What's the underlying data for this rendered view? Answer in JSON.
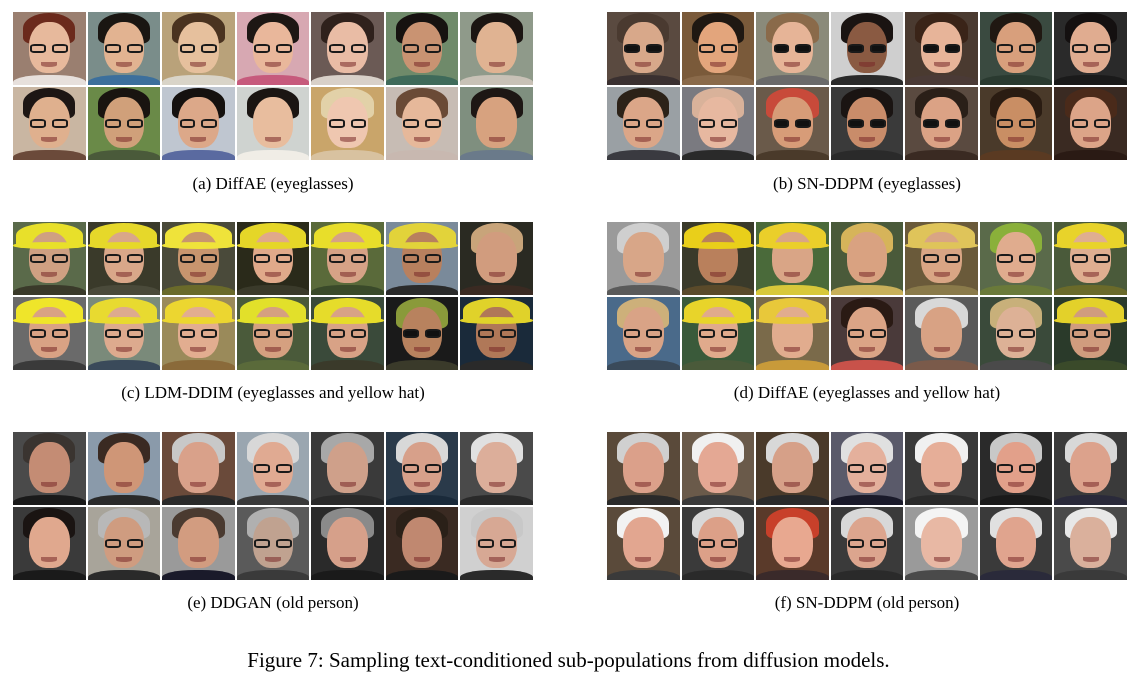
{
  "panels": [
    {
      "id": "a",
      "caption": "(a)  DiffAE (eyeglasses)",
      "faces": [
        {
          "bg": "#9a7f70",
          "skin": "#e7b99c",
          "hair": "#6b2a1c",
          "acc": "glasses",
          "shirt": "#e7e0dc"
        },
        {
          "bg": "#7a8d8a",
          "skin": "#e2b391",
          "hair": "#1a1612",
          "acc": "glasses",
          "shirt": "#3c6f9c"
        },
        {
          "bg": "#b9a27a",
          "skin": "#e6c09d",
          "hair": "#4a3320",
          "acc": "glasses",
          "shirt": "#d9d4c8"
        },
        {
          "bg": "#d7a8b2",
          "skin": "#e9b79b",
          "hair": "#1d1714",
          "acc": "glasses",
          "shirt": "#c65a7c"
        },
        {
          "bg": "#6b5a55",
          "skin": "#e9bca5",
          "hair": "#2f211c",
          "acc": "glasses",
          "shirt": "#d8d0c8"
        },
        {
          "bg": "#6f8a6a",
          "skin": "#c99372",
          "hair": "#161210",
          "acc": "glasses",
          "shirt": "#3f6a5a"
        },
        {
          "bg": "#8f9a8a",
          "skin": "#e0b392",
          "hair": "#1b1512",
          "acc": "none",
          "shirt": "#c8c1b6"
        },
        {
          "bg": "#c9b6a2",
          "skin": "#dfb08e",
          "hair": "#1d1614",
          "acc": "glasses",
          "shirt": "#6b4a3a"
        },
        {
          "bg": "#6a8a48",
          "skin": "#d0a07a",
          "hair": "#191410",
          "acc": "glasses",
          "shirt": "#4a5a3a"
        },
        {
          "bg": "#bfc6d0",
          "skin": "#dca889",
          "hair": "#15110f",
          "acc": "glasses",
          "shirt": "#5a6aa0"
        },
        {
          "bg": "#cfd3d0",
          "skin": "#e8bd9e",
          "hair": "#1a1512",
          "acc": "none",
          "shirt": "#f0ede6"
        },
        {
          "bg": "#c9a56a",
          "skin": "#efc7b0",
          "hair": "#e2d1a8",
          "acc": "glasses",
          "shirt": "#d8c2a0"
        },
        {
          "bg": "#c7bcb4",
          "skin": "#e6b89a",
          "hair": "#6a4a36",
          "acc": "glasses",
          "shirt": "#c8b8b0"
        },
        {
          "bg": "#7f8f7f",
          "skin": "#d7a27f",
          "hair": "#1d1714",
          "acc": "none",
          "shirt": "#6a7a8a"
        }
      ]
    },
    {
      "id": "b",
      "caption": "(b)  SN-DDPM (eyeglasses)",
      "faces": [
        {
          "bg": "#5a4a40",
          "skin": "#d8a88a",
          "hair": "#4a3a30",
          "acc": "sun",
          "shirt": "#3a3030"
        },
        {
          "bg": "#7a5a3a",
          "skin": "#e3a57c",
          "hair": "#1f1812",
          "acc": "glasses",
          "shirt": "#8a6a4a"
        },
        {
          "bg": "#8a8a7a",
          "skin": "#e6b497",
          "hair": "#8a6a4a",
          "acc": "sun",
          "shirt": "#6a6a6a"
        },
        {
          "bg": "#cfcfcf",
          "skin": "#8a5a42",
          "hair": "#1a1412",
          "acc": "sun",
          "shirt": "#2a2a2a"
        },
        {
          "bg": "#4a3a30",
          "skin": "#e7b499",
          "hair": "#3a2418",
          "acc": "sun",
          "shirt": "#4a3a36"
        },
        {
          "bg": "#3a4a40",
          "skin": "#d89f7c",
          "hair": "#201812",
          "acc": "glasses",
          "shirt": "#2a3a30"
        },
        {
          "bg": "#2a2a2a",
          "skin": "#e0ac90",
          "hair": "#141010",
          "acc": "glasses",
          "shirt": "#1a1a1a"
        },
        {
          "bg": "#9aa0a4",
          "skin": "#dba688",
          "hair": "#2c2218",
          "acc": "glasses",
          "shirt": "#3a3a40"
        },
        {
          "bg": "#7a7a80",
          "skin": "#e7b8a0",
          "hair": "#d9b29a",
          "acc": "glasses",
          "shirt": "#2a2a2a"
        },
        {
          "bg": "#6a5a4a",
          "skin": "#d79c78",
          "hair": "#c84a3a",
          "acc": "sun",
          "shirt": "#4a3a2a"
        },
        {
          "bg": "#3a3a3a",
          "skin": "#c98c6a",
          "hair": "#1a1412",
          "acc": "sun",
          "shirt": "#2a2a2a"
        },
        {
          "bg": "#5a4a40",
          "skin": "#dba285",
          "hair": "#2a1f18",
          "acc": "sun",
          "shirt": "#3a2a22"
        },
        {
          "bg": "#4a3a2a",
          "skin": "#c98e64",
          "hair": "#2a1c12",
          "acc": "glasses",
          "shirt": "#5a3a22"
        },
        {
          "bg": "#3a2a22",
          "skin": "#dca488",
          "hair": "#4a2a1a",
          "acc": "glasses",
          "shirt": "#2a1a14"
        }
      ]
    },
    {
      "id": "c",
      "caption": "(c)  LDM-DDIM (eyeglasses and yellow hat)",
      "faces": [
        {
          "bg": "#5a6a4a",
          "skin": "#cfa082",
          "hair": "#e8e02a",
          "acc": "glasses",
          "shirt": "#3a3a2a"
        },
        {
          "bg": "#3a3a2a",
          "skin": "#d9a789",
          "hair": "#e6d82a",
          "acc": "glasses",
          "shirt": "#4a4a3a"
        },
        {
          "bg": "#4a4a3a",
          "skin": "#c8956e",
          "hair": "#efe33a",
          "acc": "glasses",
          "shirt": "#6a6a2a"
        },
        {
          "bg": "#2a2a1a",
          "skin": "#e0a98a",
          "hair": "#e5d628",
          "acc": "glasses",
          "shirt": "#3a3a2a"
        },
        {
          "bg": "#5a6a3a",
          "skin": "#d6a286",
          "hair": "#e8de2a",
          "acc": "glasses",
          "shirt": "#3a4a2a"
        },
        {
          "bg": "#7a8a9a",
          "skin": "#b8805e",
          "hair": "#e2d33a",
          "acc": "glasses",
          "shirt": "#2a2a2a"
        },
        {
          "bg": "#2a2a22",
          "skin": "#d19c7e",
          "hair": "#c8a47a",
          "acc": "none",
          "shirt": "#3a2a22"
        },
        {
          "bg": "#6a6a6a",
          "skin": "#d9a284",
          "hair": "#efe52a",
          "acc": "glasses",
          "shirt": "#3a3a3a"
        },
        {
          "bg": "#7a8a7a",
          "skin": "#ddaa8e",
          "hair": "#e8da30",
          "acc": "glasses",
          "shirt": "#3a4a5a"
        },
        {
          "bg": "#9a8a5a",
          "skin": "#e2ad90",
          "hair": "#ecd630",
          "acc": "glasses",
          "shirt": "#8a6a3a"
        },
        {
          "bg": "#4a5a3a",
          "skin": "#d5a080",
          "hair": "#e2e02a",
          "acc": "glasses",
          "shirt": "#5a6a3a"
        },
        {
          "bg": "#3a4a3a",
          "skin": "#d8a286",
          "hair": "#e6dc2a",
          "acc": "glasses",
          "shirt": "#3a3a2a"
        },
        {
          "bg": "#1a1a1a",
          "skin": "#b8825e",
          "hair": "#8a9a3a",
          "acc": "sun",
          "shirt": "#3a3a2a"
        },
        {
          "bg": "#1a2a3a",
          "skin": "#b07858",
          "hair": "#e0d22a",
          "acc": "glasses",
          "shirt": "#2a2a2a"
        }
      ]
    },
    {
      "id": "d",
      "caption": "(d)  DiffAE (eyeglasses and yellow hat)",
      "faces": [
        {
          "bg": "#9a9a9a",
          "skin": "#d8a688",
          "hair": "#cfcfcf",
          "acc": "none",
          "shirt": "#5a5a5a"
        },
        {
          "bg": "#3a3a2a",
          "skin": "#b9805c",
          "hair": "#e9cf1a",
          "acc": "none",
          "shirt": "#5a4a2a"
        },
        {
          "bg": "#4a6a3a",
          "skin": "#d9a586",
          "hair": "#eacf2a",
          "acc": "none",
          "shirt": "#d8c83a"
        },
        {
          "bg": "#4a5a3a",
          "skin": "#d9a281",
          "hair": "#d6b45a",
          "acc": "none",
          "shirt": "#c8b05a"
        },
        {
          "bg": "#6a5a3a",
          "skin": "#d9a584",
          "hair": "#dfc45a",
          "acc": "glasses",
          "shirt": "#8a7a4a"
        },
        {
          "bg": "#5a6a4a",
          "skin": "#e0ac8e",
          "hair": "#8ab03a",
          "acc": "glasses",
          "shirt": "#6a7a3a"
        },
        {
          "bg": "#4a5a3a",
          "skin": "#dfae90",
          "hair": "#e8d32a",
          "acc": "glasses",
          "shirt": "#6a6a2a"
        },
        {
          "bg": "#4a6a8a",
          "skin": "#d9a386",
          "hair": "#cdb07a",
          "acc": "glasses",
          "shirt": "#3a4a5a"
        },
        {
          "bg": "#3a5a3a",
          "skin": "#e0aa8c",
          "hair": "#e8d42a",
          "acc": "glasses",
          "shirt": "#4a5a3a"
        },
        {
          "bg": "#7a6a4a",
          "skin": "#e1ac8e",
          "hair": "#e8c83a",
          "acc": "none",
          "shirt": "#c89a3a"
        },
        {
          "bg": "#4a3a3a",
          "skin": "#dba486",
          "hair": "#2a1a14",
          "acc": "glasses",
          "shirt": "#c8524a"
        },
        {
          "bg": "#5a5a5a",
          "skin": "#d8a284",
          "hair": "#d8d8d8",
          "acc": "none",
          "shirt": "#7a5a4a"
        },
        {
          "bg": "#3a4a3a",
          "skin": "#ddb196",
          "hair": "#c8b07a",
          "acc": "glasses",
          "shirt": "#4a4a4a"
        },
        {
          "bg": "#2a3a2a",
          "skin": "#d09c7e",
          "hair": "#e3d12a",
          "acc": "glasses",
          "shirt": "#3a4a2a"
        }
      ]
    },
    {
      "id": "e",
      "caption": "(e)  DDGAN (old person)",
      "faces": [
        {
          "bg": "#4a4a4a",
          "skin": "#c48c74",
          "hair": "#3a3430",
          "acc": "none",
          "shirt": "#1a1a1a"
        },
        {
          "bg": "#8a9aaa",
          "skin": "#cf9677",
          "hair": "#3a2a22",
          "acc": "none",
          "shirt": "#2a2a2a"
        },
        {
          "bg": "#6a4a3a",
          "skin": "#d9a18a",
          "hair": "#c8c8c8",
          "acc": "none",
          "shirt": "#2a2a2a"
        },
        {
          "bg": "#9aa6b0",
          "skin": "#e0aa92",
          "hair": "#d8d8d8",
          "acc": "glasses",
          "shirt": "#3a3a3a"
        },
        {
          "bg": "#3a3a3a",
          "skin": "#cfa08a",
          "hair": "#a8a8a8",
          "acc": "none",
          "shirt": "#2a2a2a"
        },
        {
          "bg": "#2a3a4a",
          "skin": "#d7a08a",
          "hair": "#d8d8d8",
          "acc": "glasses",
          "shirt": "#1a2a3a"
        },
        {
          "bg": "#4a4a4a",
          "skin": "#dcae9a",
          "hair": "#e0e0e0",
          "acc": "none",
          "shirt": "#2a2a2a"
        },
        {
          "bg": "#3a3a3a",
          "skin": "#e0a88e",
          "hair": "#1a1412",
          "acc": "none",
          "shirt": "#1a1a1a"
        },
        {
          "bg": "#a8a49a",
          "skin": "#cf9c80",
          "hair": "#b8b8b8",
          "acc": "glasses",
          "shirt": "#2a2a2a"
        },
        {
          "bg": "#9a9a9a",
          "skin": "#d29c80",
          "hair": "#4a3a30",
          "acc": "none",
          "shirt": "#1a1a2a"
        },
        {
          "bg": "#5a5a5a",
          "skin": "#c0a290",
          "hair": "#b0b0b0",
          "acc": "glasses",
          "shirt": "#3a3a3a"
        },
        {
          "bg": "#2a2a2a",
          "skin": "#d6a08a",
          "hair": "#8a8a8a",
          "acc": "none",
          "shirt": "#1a1a1a"
        },
        {
          "bg": "#3a2a22",
          "skin": "#c08870",
          "hair": "#2a2018",
          "acc": "none",
          "shirt": "#1a1a1a"
        },
        {
          "bg": "#d0d0d0",
          "skin": "#d7a894",
          "hair": "#c8c8c8",
          "acc": "glasses",
          "shirt": "#2a2a2a"
        }
      ]
    },
    {
      "id": "f",
      "caption": "(f)  SN-DDPM (old person)",
      "faces": [
        {
          "bg": "#5a4a3a",
          "skin": "#dba08a",
          "hair": "#d0d0d0",
          "acc": "none",
          "shirt": "#2a2a2a"
        },
        {
          "bg": "#6a5a4a",
          "skin": "#e4a894",
          "hair": "#f0f0f0",
          "acc": "none",
          "shirt": "#3a3a3a"
        },
        {
          "bg": "#4a3a2a",
          "skin": "#d6a088",
          "hair": "#d8d8d8",
          "acc": "none",
          "shirt": "#2a2a2a"
        },
        {
          "bg": "#5a5a6a",
          "skin": "#e4b09c",
          "hair": "#e0e0e0",
          "acc": "glasses",
          "shirt": "#1a1a2a"
        },
        {
          "bg": "#3a3a3a",
          "skin": "#e6ae98",
          "hair": "#f0f0f0",
          "acc": "none",
          "shirt": "#2a2a2a"
        },
        {
          "bg": "#2a2a2a",
          "skin": "#e2a08a",
          "hair": "#c8c8c8",
          "acc": "glasses",
          "shirt": "#1a1a1a"
        },
        {
          "bg": "#3a3a3a",
          "skin": "#dca28c",
          "hair": "#d8d8d8",
          "acc": "none",
          "shirt": "#2a2a3a"
        },
        {
          "bg": "#5a4a3a",
          "skin": "#e2a690",
          "hair": "#f2f2f2",
          "acc": "none",
          "shirt": "#3a3a3a"
        },
        {
          "bg": "#3a3a3a",
          "skin": "#dca088",
          "hair": "#d8d8d8",
          "acc": "glasses",
          "shirt": "#2a2a2a"
        },
        {
          "bg": "#5a3a2a",
          "skin": "#e8a890",
          "hair": "#c8402a",
          "acc": "none",
          "shirt": "#3a2a2a"
        },
        {
          "bg": "#3a3a3a",
          "skin": "#dca58e",
          "hair": "#d8d8d8",
          "acc": "glasses",
          "shirt": "#2a2a2a"
        },
        {
          "bg": "#9a9a9a",
          "skin": "#e8b8a4",
          "hair": "#f4f4f4",
          "acc": "none",
          "shirt": "#4a4a4a"
        },
        {
          "bg": "#3a3a3a",
          "skin": "#e0a48e",
          "hair": "#e0e0e0",
          "acc": "none",
          "shirt": "#2a2a3a"
        },
        {
          "bg": "#4a4a4a",
          "skin": "#dab09c",
          "hair": "#e8e8e8",
          "acc": "none",
          "shirt": "#3a3a3a"
        }
      ]
    }
  ],
  "figure_caption": "Figure 7:  Sampling text-conditioned sub-populations from diffusion models."
}
